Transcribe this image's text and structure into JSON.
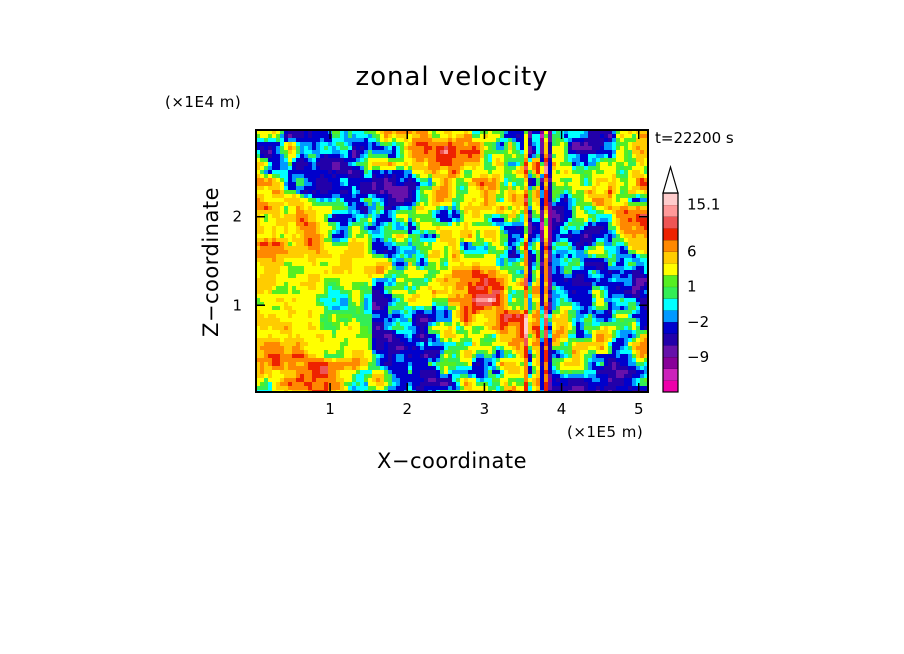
{
  "chart_data": {
    "type": "heatmap",
    "title": "zonal velocity",
    "xlabel": "X−coordinate",
    "ylabel": "Z−coordinate",
    "x_unit": "(×1E5 m)",
    "y_unit": "(×1E4 m)",
    "time_label": "t=22200 s",
    "xlim": [
      0.04,
      5.12
    ],
    "ylim": [
      0.02,
      2.98
    ],
    "x_ticks": [
      1,
      2,
      3,
      4,
      5
    ],
    "x_tick_labels": [
      "1",
      "2",
      "3",
      "4",
      "5"
    ],
    "y_ticks": [
      1,
      2
    ],
    "y_tick_labels": [
      "1",
      "2"
    ],
    "colorbar": {
      "levels": [
        -16,
        -13.5,
        -11,
        -9,
        -6.5,
        -4,
        -2,
        -1,
        0,
        1,
        2,
        4,
        6,
        8.5,
        11,
        13,
        15.1
      ],
      "colors": [
        "#ee00aa",
        "#cc22bb",
        "#880099",
        "#6611aa",
        "#2200aa",
        "#0000cc",
        "#0099ff",
        "#00ffff",
        "#33ee55",
        "#55ee22",
        "#ffff00",
        "#ffcc00",
        "#ff8800",
        "#ee2200",
        "#ee5555",
        "#ff9999",
        "#ffcccc"
      ],
      "labeled_values": [
        "15.1",
        "6",
        "1",
        "−2",
        "−9"
      ],
      "extend_max_triangle": true
    },
    "grid": false,
    "legend": "colorbar right"
  }
}
